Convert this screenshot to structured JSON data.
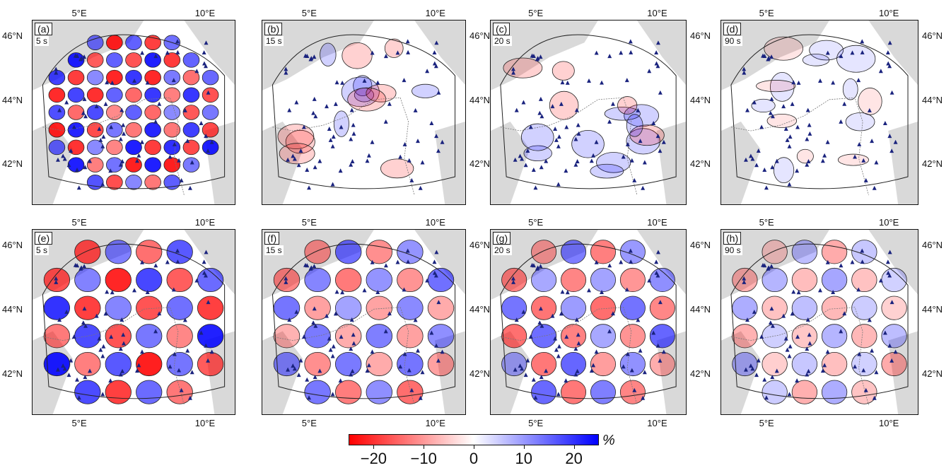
{
  "panels": [
    {
      "letter": "(a)",
      "period": "5 s",
      "kind": "checker",
      "scale": "small"
    },
    {
      "letter": "(b)",
      "period": "15 s",
      "kind": "smooth",
      "scale": "small"
    },
    {
      "letter": "(c)",
      "period": "20 s",
      "kind": "smooth",
      "scale": "small"
    },
    {
      "letter": "(d)",
      "period": "90 s",
      "kind": "smooth",
      "scale": "small"
    },
    {
      "letter": "(e)",
      "period": "5 s",
      "kind": "checker",
      "scale": "large"
    },
    {
      "letter": "(f)",
      "period": "15 s",
      "kind": "checker",
      "scale": "large"
    },
    {
      "letter": "(g)",
      "period": "20 s",
      "kind": "checker",
      "scale": "large"
    },
    {
      "letter": "(h)",
      "period": "90 s",
      "kind": "checker",
      "scale": "large"
    }
  ],
  "axes": {
    "lon_ticks": [
      "5°E",
      "10°E"
    ],
    "lat_ticks": [
      "46°N",
      "44°N",
      "42°N"
    ]
  },
  "colorbar": {
    "ticks": [
      "−20",
      "−10",
      "0",
      "10",
      "20"
    ],
    "tick_values": [
      -20,
      -10,
      0,
      10,
      20
    ],
    "range": [
      -25,
      25
    ],
    "unit": "%",
    "colors": {
      "negative": "#ff0000",
      "zero": "#ffffff",
      "positive": "#0000ff"
    }
  },
  "colors": {
    "land": "#d9d9d9",
    "station": "#1a237e",
    "contour": "#222222"
  }
}
